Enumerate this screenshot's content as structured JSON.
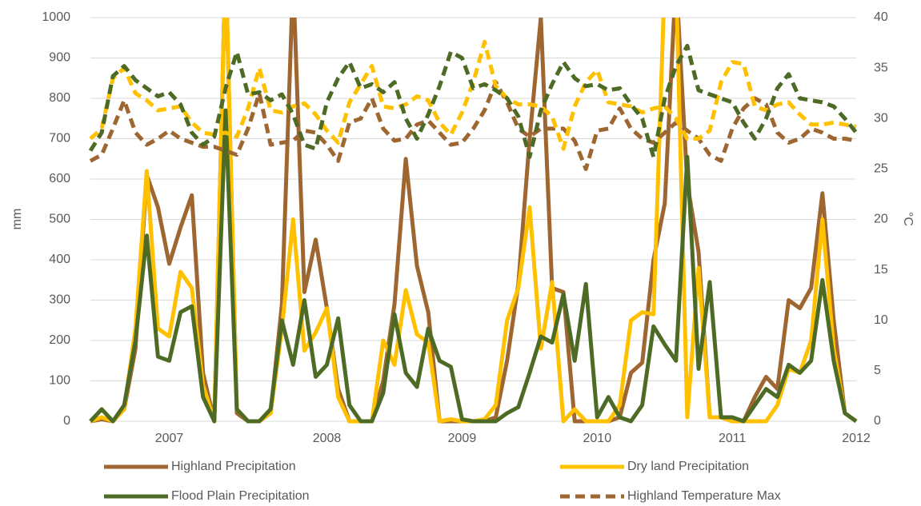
{
  "chart_data": {
    "type": "line",
    "ylabel": "mm",
    "y2label": "°C",
    "categories": [
      null,
      null,
      null,
      null,
      null,
      null,
      null,
      "2007",
      null,
      null,
      null,
      null,
      null,
      null,
      null,
      null,
      null,
      null,
      null,
      null,
      null,
      "2008",
      null,
      null,
      null,
      null,
      null,
      null,
      null,
      null,
      null,
      null,
      null,
      "2009",
      null,
      null,
      null,
      null,
      null,
      null,
      null,
      null,
      null,
      null,
      null,
      "2010",
      null,
      null,
      null,
      null,
      null,
      null,
      null,
      null,
      null,
      null,
      null,
      "2011",
      null,
      null,
      null,
      null,
      null,
      null,
      null,
      null,
      null,
      null,
      "2012"
    ],
    "ylim": [
      0,
      1000
    ],
    "yticks": [
      0,
      100,
      200,
      300,
      400,
      500,
      600,
      700,
      800,
      900,
      1000
    ],
    "y2lim": [
      0,
      40
    ],
    "y2ticks": [
      0,
      5,
      10,
      15,
      20,
      25,
      30,
      35,
      40
    ],
    "grid": true,
    "legend": "bottom",
    "series": [
      {
        "name": "Highland Precipitation",
        "color": "#9e6630",
        "values": [
          0,
          5,
          0,
          30,
          180,
          610,
          530,
          390,
          480,
          560,
          120,
          0,
          1150,
          20,
          0,
          0,
          20,
          290,
          1100,
          320,
          450,
          280,
          80,
          0,
          0,
          0,
          100,
          290,
          650,
          385,
          270,
          0,
          0,
          0,
          0,
          0,
          10,
          150,
          340,
          700,
          1000,
          330,
          320,
          0,
          0,
          0,
          0,
          10,
          120,
          145,
          400,
          540,
          1100,
          590,
          420,
          10,
          10,
          0,
          0,
          60,
          110,
          80,
          300,
          280,
          330,
          565,
          250,
          20,
          0
        ]
      },
      {
        "name": "Dry land Precipitation",
        "color": "#ffc000",
        "values": [
          0,
          10,
          0,
          30,
          230,
          620,
          230,
          210,
          370,
          330,
          90,
          0,
          1150,
          30,
          0,
          0,
          20,
          230,
          500,
          175,
          220,
          280,
          60,
          0,
          0,
          0,
          200,
          140,
          325,
          215,
          195,
          0,
          5,
          0,
          0,
          5,
          40,
          250,
          330,
          530,
          180,
          345,
          0,
          30,
          0,
          0,
          0,
          40,
          250,
          270,
          265,
          1100,
          1100,
          10,
          380,
          10,
          10,
          0,
          0,
          0,
          0,
          40,
          130,
          120,
          200,
          500,
          180,
          20,
          0
        ]
      },
      {
        "name": "Flood Plain Precipitation",
        "color": "#4e6b26",
        "values": [
          0,
          30,
          0,
          40,
          200,
          460,
          160,
          150,
          270,
          285,
          60,
          0,
          770,
          30,
          0,
          0,
          30,
          250,
          140,
          300,
          110,
          140,
          255,
          40,
          0,
          0,
          70,
          265,
          120,
          85,
          230,
          150,
          135,
          5,
          0,
          0,
          0,
          20,
          35,
          120,
          210,
          195,
          315,
          150,
          340,
          10,
          60,
          10,
          0,
          40,
          235,
          190,
          150,
          655,
          130,
          345,
          10,
          10,
          0,
          40,
          80,
          60,
          140,
          120,
          150,
          350,
          150,
          20,
          0
        ]
      },
      {
        "name": "Highland Temperature Max",
        "color": "#9e6630",
        "dashed": true,
        "axis": "y2",
        "values": [
          25.8,
          26.4,
          29,
          31.8,
          28.6,
          27.4,
          28,
          28.8,
          28,
          27.6,
          27.2,
          27.2,
          26.8,
          26.4,
          29,
          32.5,
          27.4,
          27.6,
          27.8,
          28.8,
          28.6,
          27.4,
          25.8,
          29.6,
          30,
          32,
          29,
          27.8,
          28,
          29.4,
          29.8,
          28.6,
          27.4,
          27.6,
          29,
          30.8,
          33.6,
          31.6,
          29,
          28.2,
          29,
          29,
          29,
          27.8,
          25,
          28.8,
          29,
          31,
          29,
          28,
          27.6,
          28.6,
          29.6,
          28.8,
          28,
          26.4,
          25.8,
          29,
          31,
          32,
          31.4,
          28.6,
          27.6,
          28,
          29,
          28.6,
          28,
          28,
          27.8
        ]
      },
      {
        "color": "#ffc000",
        "dashed": true,
        "axis": "y2",
        "values": [
          28,
          29,
          34,
          35,
          32.5,
          31.8,
          30.8,
          31,
          31.2,
          29.6,
          28.6,
          28.4,
          28.6,
          28.2,
          31,
          35,
          30.8,
          30.6,
          31.2,
          31.5,
          30.4,
          28.8,
          27.6,
          31.6,
          33.4,
          35.2,
          31.2,
          31,
          31.4,
          32.2,
          31.8,
          29.6,
          28.4,
          30.6,
          33.6,
          37.6,
          33.2,
          32,
          31.4,
          31.4,
          31.2,
          30.2,
          27,
          31.2,
          33.6,
          34.8,
          31.6,
          31.4,
          31.2,
          30.6,
          31,
          31.2,
          30,
          28,
          28,
          28.8,
          33.6,
          35.6,
          35.4,
          31.2,
          30.8,
          31.4,
          31.6,
          30.4,
          29.4,
          29.4,
          29.6,
          29.4,
          29.2
        ]
      },
      {
        "color": "#4e6b26",
        "dashed": true,
        "axis": "y2",
        "values": [
          26.8,
          28.6,
          34.2,
          35.2,
          33.8,
          33,
          32.2,
          32.6,
          31.4,
          28.6,
          27.4,
          28.2,
          33,
          36.6,
          32.4,
          32.6,
          31.8,
          32.4,
          30.4,
          27.4,
          27,
          31.6,
          34,
          35.6,
          33,
          33.4,
          32.6,
          33.6,
          30,
          28,
          30.4,
          33.2,
          36.6,
          36,
          33,
          33.4,
          32.8,
          32,
          30.2,
          26.2,
          30.8,
          33.4,
          35.6,
          34,
          33.2,
          33.4,
          32.8,
          33,
          31.4,
          30,
          26.2,
          32,
          35.2,
          37.2,
          32.8,
          32.4,
          32,
          31.6,
          29.6,
          28,
          30,
          33,
          34.4,
          32,
          31.8,
          31.6,
          31.2,
          30,
          28.6
        ]
      }
    ]
  }
}
